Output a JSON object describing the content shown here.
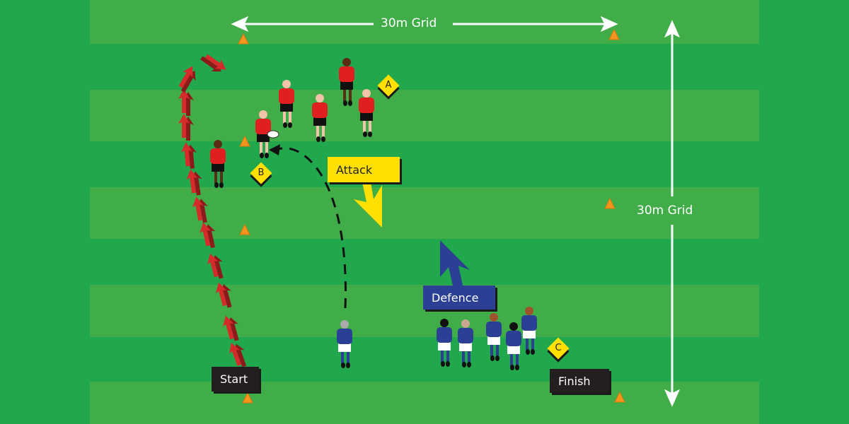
{
  "grid_width_label": "30m Grid",
  "grid_height_label": "30m Grid",
  "labels": {
    "attack": "Attack",
    "defence": "Defence",
    "start": "Start",
    "finish": "Finish"
  },
  "markers": [
    "A",
    "B",
    "C"
  ],
  "colors": {
    "field_light": "#41ad49",
    "field_dark": "#22a84c",
    "cone": "#f7941d",
    "attack_box": "#ffe000",
    "defence_box": "#2b3f94",
    "label_box": "#231f20",
    "attackers": "#e02020",
    "defenders": "#2b3f94",
    "run_arrows": "#c1272d"
  }
}
